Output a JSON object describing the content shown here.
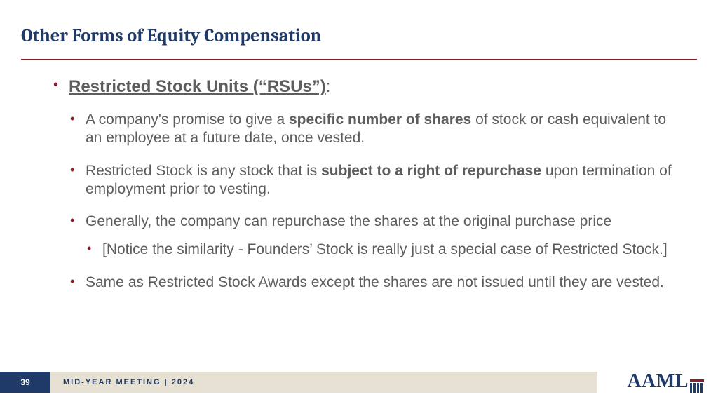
{
  "colors": {
    "title": "#1f3a68",
    "rule": "#8a1d2a",
    "body_text": "#5d5d5d",
    "bullet": "#8a1d2a",
    "page_box_bg": "#1f3a68",
    "meeting_bg": "#e6e1d3",
    "meeting_text": "#1f3a68",
    "logo": "#1f3a68",
    "logo_bar": "#8a1d2a"
  },
  "title": "Other Forms of Equity Compensation",
  "heading": "Restricted Stock Units (“RSUs”)",
  "heading_suffix": ":",
  "bullets": {
    "b1_pre": "A company's promise to give a ",
    "b1_bold": "specific number of shares",
    "b1_post": " of stock or cash equivalent to an employee at a future date, once vested.",
    "b2_pre": "Restricted Stock is any stock that is ",
    "b2_bold": "subject to a right of repurchase",
    "b2_post": " upon termination of employment prior to vesting.",
    "b3": "Generally, the company can repurchase the shares at the original purchase price",
    "b3_sub": "[Notice the similarity - Founders’ Stock is really just a special case of Restricted Stock.]",
    "b4": "Same as Restricted Stock Awards except the shares are not issued until they are vested."
  },
  "footer": {
    "page": "39",
    "meeting": "MID-YEAR MEETING | 2024",
    "logo": "AAML"
  }
}
